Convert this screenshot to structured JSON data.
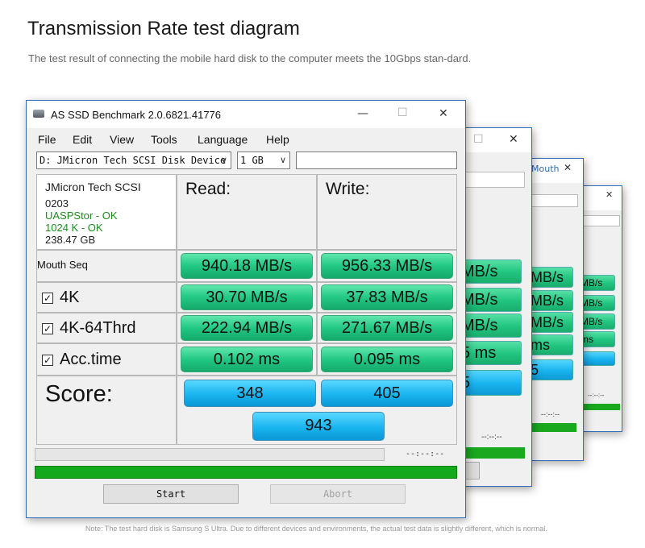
{
  "page": {
    "title": "Transmission Rate test diagram",
    "subtitle": "The test result of connecting the mobile hard disk to the computer meets the 10Gbps stan-dard.",
    "note": "Note: The test hard disk is Samsung S Ultra. Due to different devices and environments, the actual test data is slightly different, which is normal."
  },
  "window": {
    "title": "AS SSD Benchmark 2.0.6821.41776",
    "controls": {
      "minimize": "—",
      "maximize": "☐",
      "close": "✕"
    }
  },
  "menu": [
    "File",
    "Edit",
    "View",
    "Tools",
    "Language",
    "Help"
  ],
  "device_select": "D: JMicron Tech SCSI Disk Device",
  "size_select": "1 GB",
  "device_info": {
    "name": "JMicron Tech SCSI",
    "firmware": "0203",
    "driver": "UASPStor - OK",
    "alignment": "1024 K - OK",
    "capacity": "238.47 GB"
  },
  "columns": {
    "read": "Read:",
    "write": "Write:"
  },
  "rows": [
    {
      "label": "Mouth Seq",
      "checked": false,
      "read": "940.18 MB/s",
      "write": "956.33 MB/s"
    },
    {
      "label": "4K",
      "checked": true,
      "read": "30.70 MB/s",
      "write": "37.83 MB/s"
    },
    {
      "label": "4K-64Thrd",
      "checked": true,
      "read": "222.94 MB/s",
      "write": "271.67 MB/s"
    },
    {
      "label": "Acc.time",
      "checked": true,
      "read": "0.102 ms",
      "write": "0.095 ms"
    }
  ],
  "score": {
    "label": "Score:",
    "read": "348",
    "write": "405",
    "total": "943"
  },
  "progress": {
    "elapsed": "--:--:--",
    "fill": 1.0
  },
  "buttons": {
    "start": "Start",
    "abort": "Abort"
  },
  "colors": {
    "result_green": "#22c883",
    "score_blue": "#19b4ef",
    "progress_green": "#14a81c",
    "window_border": "#2f6fb8"
  },
  "background_windows": {
    "w1": {
      "results": [
        "MB/s",
        "MB/s",
        "MB/s",
        "5 ms"
      ],
      "score": "5",
      "elapsed": "--:--:--"
    },
    "w2": {
      "title": "Mouth",
      "results": [
        "MB/s",
        "MB/s",
        "MB/s",
        "ms"
      ],
      "score": "5",
      "elapsed": "--:--:--"
    },
    "w3": {
      "results": [
        "MB/s",
        "MB/s",
        "MB/s",
        "ms"
      ],
      "elapsed": "--:--:--"
    }
  }
}
